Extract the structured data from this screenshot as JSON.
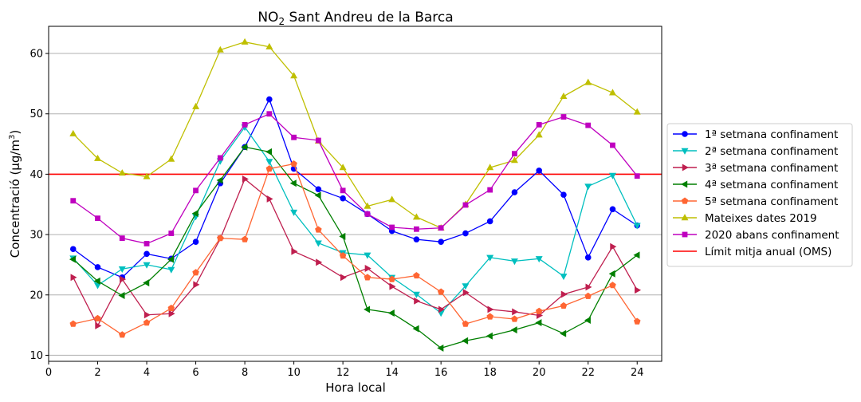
{
  "chart_data": {
    "type": "line",
    "title_main": "NO",
    "title_sub": "2",
    "title_rest": " Sant Andreu de la Barca",
    "xlabel": "Hora local",
    "ylabel_main": "Concentració (µg/m",
    "ylabel_sup": "3",
    "ylabel_end": ")",
    "xlim": [
      0,
      25
    ],
    "ylim": [
      9,
      64.5
    ],
    "xticks": [
      0,
      2,
      4,
      6,
      8,
      10,
      12,
      14,
      16,
      18,
      20,
      22,
      24
    ],
    "yticks": [
      10,
      20,
      30,
      40,
      50,
      60
    ],
    "grid": "horizontal",
    "legend_position": "center-right-outside",
    "x": [
      1,
      2,
      3,
      4,
      5,
      6,
      7,
      8,
      9,
      10,
      11,
      12,
      13,
      14,
      15,
      16,
      17,
      18,
      19,
      20,
      21,
      22,
      23,
      24
    ],
    "series": [
      {
        "name": "1ª setmana confinament",
        "color": "#0000ff",
        "marker": "circle",
        "values": [
          27.6,
          24.6,
          22.9,
          26.8,
          26.0,
          28.8,
          38.5,
          44.5,
          52.4,
          40.9,
          37.5,
          36.0,
          33.4,
          30.6,
          29.2,
          28.8,
          30.2,
          32.2,
          37.0,
          40.6,
          36.6,
          26.2,
          34.2,
          31.5
        ]
      },
      {
        "name": "2ª setmana confinament",
        "color": "#00bfbf",
        "marker": "triangle-down",
        "values": [
          26.1,
          21.6,
          24.3,
          25.0,
          24.2,
          33.0,
          42.2,
          47.8,
          42.1,
          33.7,
          28.6,
          27.0,
          26.6,
          22.9,
          20.1,
          17.0,
          21.5,
          26.2,
          25.6,
          26.0,
          23.1,
          38.0,
          39.8,
          31.5
        ]
      },
      {
        "name": "3ª setmana confinament",
        "color": "#bf1f4f",
        "marker": "triangle-right",
        "values": [
          22.9,
          14.9,
          22.6,
          16.7,
          16.9,
          21.7,
          29.3,
          39.2,
          35.9,
          27.2,
          25.4,
          22.9,
          24.4,
          21.4,
          19.0,
          17.6,
          20.4,
          17.6,
          17.2,
          16.6,
          20.1,
          21.3,
          28.0,
          20.8
        ]
      },
      {
        "name": "4ª setmana confinament",
        "color": "#007f00",
        "marker": "triangle-left",
        "values": [
          25.9,
          22.3,
          19.9,
          22.0,
          25.9,
          33.5,
          39.0,
          44.5,
          43.7,
          38.5,
          36.5,
          29.7,
          17.6,
          17.0,
          14.4,
          11.2,
          12.4,
          13.2,
          14.2,
          15.4,
          13.6,
          15.8,
          23.5,
          26.6
        ]
      },
      {
        "name": "5ª setmana confinament",
        "color": "#ff6633",
        "marker": "pentagon",
        "values": [
          15.2,
          16.1,
          13.4,
          15.4,
          17.8,
          23.7,
          29.4,
          29.2,
          40.9,
          41.7,
          30.8,
          26.5,
          22.9,
          22.6,
          23.2,
          20.5,
          15.2,
          16.4,
          16.0,
          17.3,
          18.2,
          19.8,
          21.6,
          15.6
        ]
      },
      {
        "name": "Mateixes dates 2019",
        "color": "#bfbf00",
        "marker": "triangle-up",
        "values": [
          46.7,
          42.6,
          40.2,
          39.6,
          42.5,
          51.2,
          60.6,
          61.9,
          61.1,
          56.3,
          45.5,
          41.1,
          34.7,
          35.8,
          32.9,
          31.1,
          35.0,
          41.1,
          42.3,
          46.5,
          52.9,
          55.2,
          53.5,
          50.3
        ]
      },
      {
        "name": "2020 abans confinament",
        "color": "#bf00bf",
        "marker": "square",
        "values": [
          35.6,
          32.7,
          29.4,
          28.5,
          30.2,
          37.3,
          42.7,
          48.2,
          50.0,
          46.1,
          45.6,
          37.3,
          33.4,
          31.2,
          30.9,
          31.1,
          34.9,
          37.4,
          43.4,
          48.2,
          49.5,
          48.1,
          44.8,
          39.7
        ]
      }
    ],
    "reference_line": {
      "name": "Límit mitja anual (OMS)",
      "value": 40,
      "color": "#ff0000"
    }
  }
}
